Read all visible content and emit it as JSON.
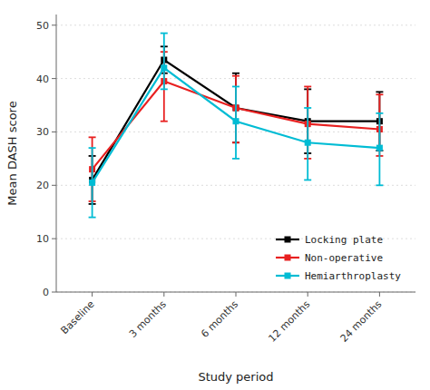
{
  "chart_data": {
    "type": "line",
    "xlabel": "Study period",
    "ylabel": "Mean DASH score",
    "categories": [
      "Baseline",
      "3 months",
      "6 months",
      "12 months",
      "24 months"
    ],
    "series": [
      {
        "name": "Locking plate",
        "color": "#000000",
        "marker": "square",
        "values": [
          21.0,
          43.5,
          34.5,
          32.0,
          32.0
        ],
        "error_lower": [
          4.5,
          2.5,
          6.5,
          6.0,
          5.5
        ],
        "error_upper": [
          4.5,
          2.5,
          6.5,
          6.0,
          5.5
        ]
      },
      {
        "name": "Non-operative",
        "color": "#e82020",
        "marker": "square",
        "values": [
          23.0,
          39.5,
          34.5,
          31.5,
          30.5
        ],
        "error_lower": [
          6.0,
          7.5,
          6.5,
          6.5,
          5.0
        ],
        "error_upper": [
          6.0,
          5.5,
          6.0,
          7.0,
          6.5
        ]
      },
      {
        "name": "Hemiarthroplasty",
        "color": "#00bcd4",
        "marker": "square",
        "values": [
          20.5,
          42.0,
          32.0,
          28.0,
          27.0
        ],
        "error_lower": [
          6.5,
          4.0,
          7.0,
          7.0,
          7.0
        ],
        "error_upper": [
          6.5,
          6.5,
          6.5,
          6.5,
          6.5
        ]
      }
    ],
    "ylim": [
      0,
      52
    ],
    "yticks": [
      0,
      10,
      20,
      30,
      40,
      50
    ],
    "grid": true,
    "legend": "lower right"
  }
}
